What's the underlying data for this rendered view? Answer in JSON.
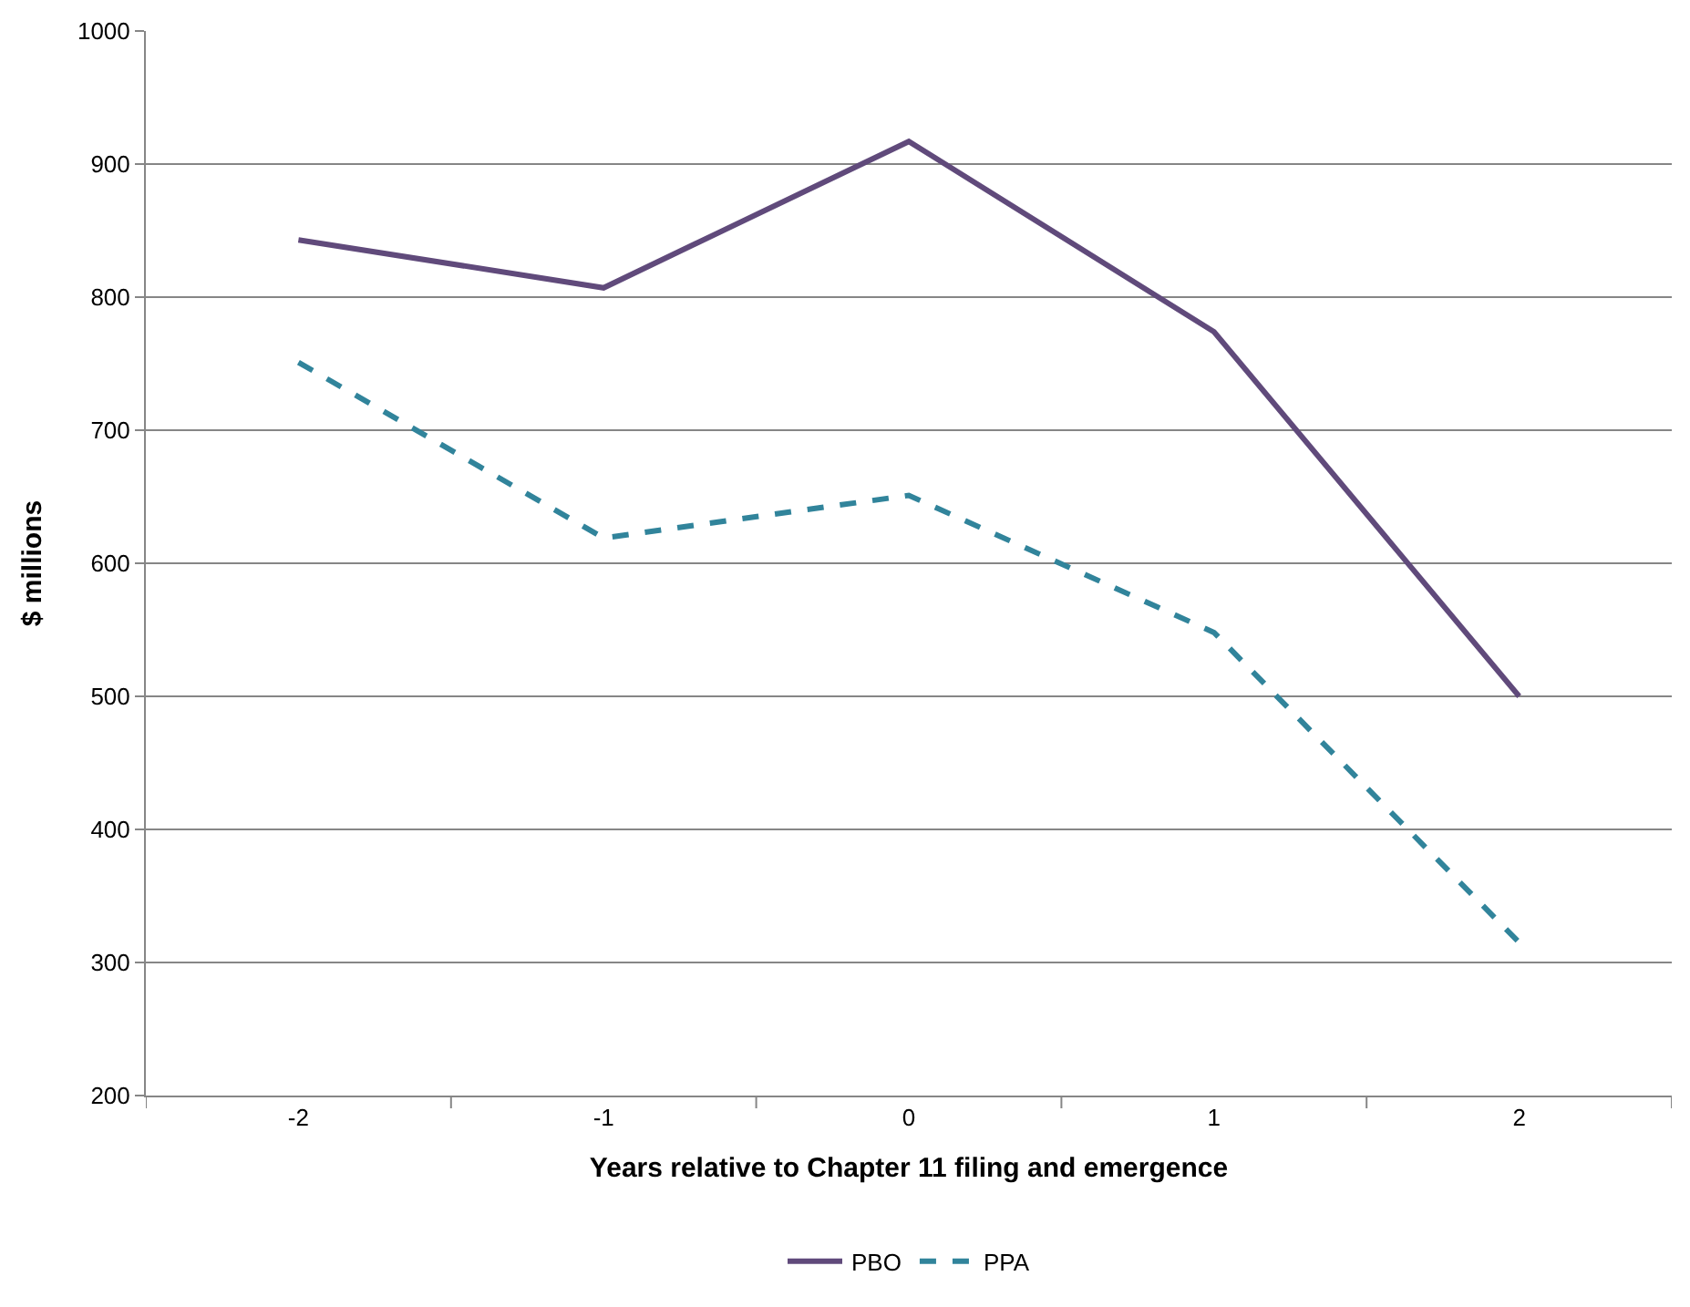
{
  "chart_data": {
    "type": "line",
    "xlabel": "Years relative to Chapter 11 filing and emergence",
    "ylabel": "$ millions",
    "categories": [
      "-2",
      "-1",
      "0",
      "1",
      "2"
    ],
    "series": [
      {
        "name": "PBO",
        "color": "#604a7b",
        "values": [
          843,
          807,
          917,
          774,
          500
        ],
        "line_style": "solid"
      },
      {
        "name": "PPA",
        "color": "#31849b",
        "values": [
          751,
          619,
          651,
          548,
          315
        ],
        "line_style": "dashed"
      }
    ],
    "ylim": [
      200,
      1000
    ],
    "yticks": [
      200,
      300,
      400,
      500,
      600,
      700,
      800,
      900,
      1000
    ],
    "grid": "y",
    "legend": "bottom",
    "marker": "none"
  }
}
